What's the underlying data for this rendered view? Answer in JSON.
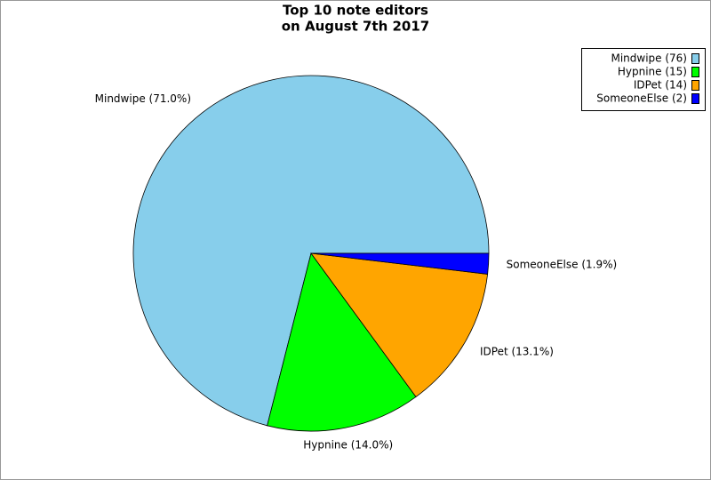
{
  "chart_data": {
    "type": "pie",
    "title": [
      "Top 10 note editors",
      "on August 7th 2017"
    ],
    "categories": [
      "Mindwipe",
      "Hypnine",
      "IDPet",
      "SomeoneElse"
    ],
    "values": [
      76,
      15,
      14,
      2
    ],
    "value_labels": [
      "Mindwipe (71.0%)",
      "Hypnine (14.0%)",
      "IDPet (13.1%)",
      "SomeoneElse (1.9%)"
    ],
    "legend_labels": [
      "Mindwipe (76)",
      "Hypnine (15)",
      "IDPet (14)",
      "SomeoneElse (2)"
    ],
    "colors": [
      "#87ceeb",
      "#00ff00",
      "#ffa500",
      "#0000ff"
    ],
    "legend": "top-right"
  }
}
